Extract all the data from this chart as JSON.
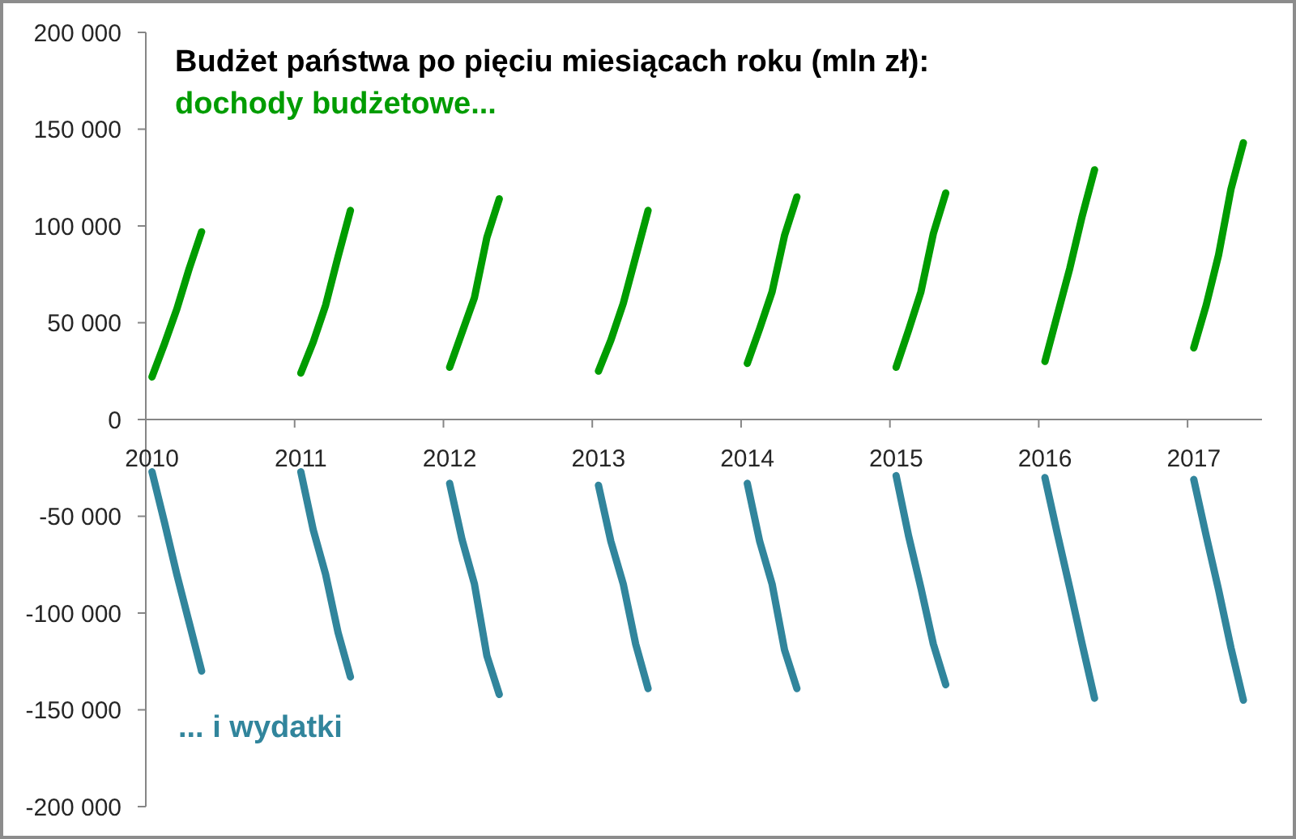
{
  "chart_data": {
    "type": "line",
    "title": "Budżet państwa po pięciu miesiącach roku (mln zł):",
    "categories": [
      "2010",
      null,
      null,
      null,
      null,
      null,
      null,
      null,
      null,
      null,
      null,
      null,
      "2011",
      null,
      null,
      null,
      null,
      null,
      null,
      null,
      null,
      null,
      null,
      null,
      "2012",
      null,
      null,
      null,
      null,
      null,
      null,
      null,
      null,
      null,
      null,
      null,
      "2013",
      null,
      null,
      null,
      null,
      null,
      null,
      null,
      null,
      null,
      null,
      null,
      "2014",
      null,
      null,
      null,
      null,
      null,
      null,
      null,
      null,
      null,
      null,
      null,
      "2015",
      null,
      null,
      null,
      null,
      null,
      null,
      null,
      null,
      null,
      null,
      null,
      "2016",
      null,
      null,
      null,
      null,
      null,
      null,
      null,
      null,
      null,
      null,
      null,
      "2017",
      null,
      null,
      null,
      null,
      null
    ],
    "series": [
      {
        "name": "dochody budżetowe...",
        "color": "#009c00",
        "values": [
          22000,
          39000,
          57000,
          78000,
          97000,
          null,
          null,
          null,
          null,
          null,
          null,
          null,
          24000,
          40000,
          59000,
          84000,
          108000,
          null,
          null,
          null,
          null,
          null,
          null,
          null,
          27000,
          45000,
          63000,
          94000,
          114000,
          null,
          null,
          null,
          null,
          null,
          null,
          null,
          25000,
          41000,
          60000,
          84000,
          108000,
          null,
          null,
          null,
          null,
          null,
          null,
          null,
          29000,
          47000,
          66000,
          95000,
          115000,
          null,
          null,
          null,
          null,
          null,
          null,
          null,
          27000,
          46000,
          66000,
          96000,
          117000,
          null,
          null,
          null,
          null,
          null,
          null,
          null,
          30000,
          54000,
          78000,
          105000,
          129000,
          null,
          null,
          null,
          null,
          null,
          null,
          null,
          37000,
          59000,
          85000,
          119000,
          143000,
          null
        ]
      },
      {
        "name": "... i wydatki",
        "color": "#31859c",
        "values": [
          -27000,
          -53000,
          -80000,
          -105000,
          -130000,
          null,
          null,
          null,
          null,
          null,
          null,
          null,
          -27000,
          -57000,
          -80000,
          -110000,
          -133000,
          null,
          null,
          null,
          null,
          null,
          null,
          null,
          -33000,
          -62000,
          -85000,
          -122000,
          -142000,
          null,
          null,
          null,
          null,
          null,
          null,
          null,
          -34000,
          -63000,
          -85000,
          -116000,
          -139000,
          null,
          null,
          null,
          null,
          null,
          null,
          null,
          -33000,
          -63000,
          -85000,
          -119000,
          -139000,
          null,
          null,
          null,
          null,
          null,
          null,
          null,
          -29000,
          -60000,
          -87000,
          -116000,
          -137000,
          null,
          null,
          null,
          null,
          null,
          null,
          null,
          -30000,
          -59000,
          -87000,
          -116000,
          -144000,
          null,
          null,
          null,
          null,
          null,
          null,
          null,
          -31000,
          -60000,
          -88000,
          -118000,
          -145000,
          null
        ]
      }
    ],
    "ylim": [
      -200000,
      200000
    ],
    "yticks": [
      {
        "value": -200000,
        "label": "-200 000"
      },
      {
        "value": -150000,
        "label": "-150 000"
      },
      {
        "value": -100000,
        "label": "-100 000"
      },
      {
        "value": -50000,
        "label": "-50 000"
      },
      0,
      {
        "value": 50000,
        "label": "50 000"
      },
      {
        "value": 100000,
        "label": "100 000"
      },
      {
        "value": 150000,
        "label": "150 000"
      },
      {
        "value": 200000,
        "label": "200 000"
      }
    ],
    "marker": "none"
  }
}
